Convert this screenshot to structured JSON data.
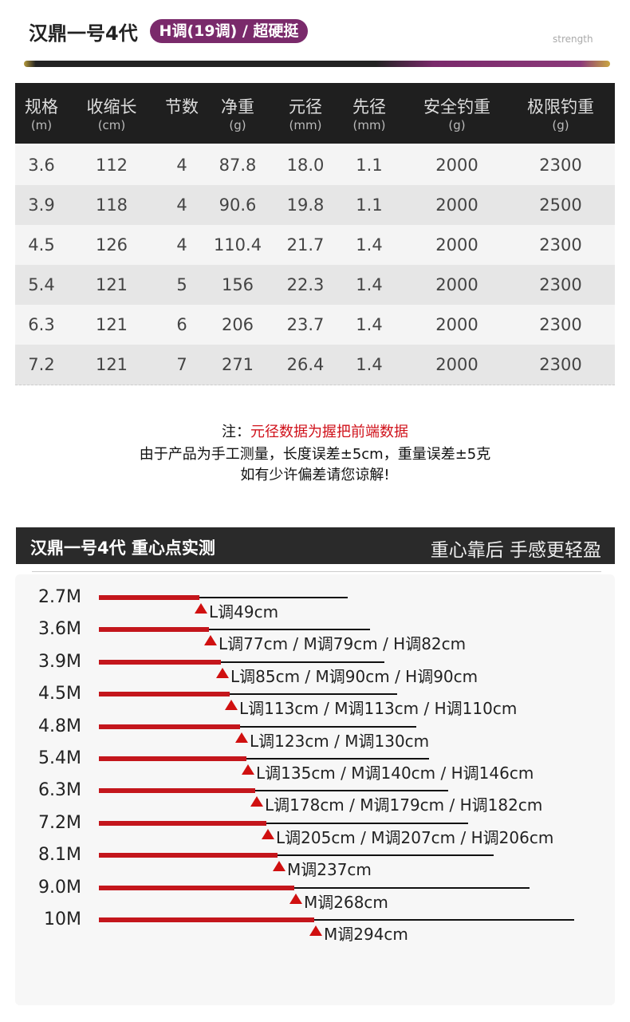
{
  "header": {
    "title": "汉鼎一号4代",
    "badge": "H调(19调) / 超硬挺",
    "rod_text": "strength"
  },
  "table": {
    "columns": [
      {
        "name": "规格",
        "unit": "(m)"
      },
      {
        "name": "收缩长",
        "unit": "(cm)"
      },
      {
        "name": "节数",
        "unit": ""
      },
      {
        "name": "净重",
        "unit": "(g)"
      },
      {
        "name": "元径",
        "unit": "(mm)"
      },
      {
        "name": "先径",
        "unit": "(mm)"
      },
      {
        "name": "安全钓重",
        "unit": "(g)"
      },
      {
        "name": "极限钓重",
        "unit": "(g)"
      }
    ],
    "rows": [
      [
        "3.6",
        "112",
        "4",
        "87.8",
        "18.0",
        "1.1",
        "2000",
        "2300"
      ],
      [
        "3.9",
        "118",
        "4",
        "90.6",
        "19.8",
        "1.1",
        "2000",
        "2500"
      ],
      [
        "4.5",
        "126",
        "4",
        "110.4",
        "21.7",
        "1.4",
        "2000",
        "2300"
      ],
      [
        "5.4",
        "121",
        "5",
        "156",
        "22.3",
        "1.4",
        "2000",
        "2300"
      ],
      [
        "6.3",
        "121",
        "6",
        "206",
        "23.7",
        "1.4",
        "2000",
        "2300"
      ],
      [
        "7.2",
        "121",
        "7",
        "271",
        "26.4",
        "1.4",
        "2000",
        "2300"
      ]
    ]
  },
  "note": {
    "label": "注：",
    "highlight": "元径数据为握把前端数据",
    "lines": [
      "由于产品为手工测量，长度误差±5cm，重量误差±5克",
      "如有少许偏差请您谅解!"
    ]
  },
  "balance": {
    "title": "汉鼎一号4代  重心点实测",
    "slogan": "重心靠后 手感更轻盈",
    "rows": [
      {
        "length": "2.7M",
        "points": "L调49cm"
      },
      {
        "length": "3.6M",
        "points": "L调77cm / M调79cm / H调82cm"
      },
      {
        "length": "3.9M",
        "points": "L调85cm / M调90cm / H调90cm"
      },
      {
        "length": "4.5M",
        "points": "L调113cm / M调113cm / H调110cm"
      },
      {
        "length": "4.8M",
        "points": "L调123cm / M调130cm"
      },
      {
        "length": "5.4M",
        "points": "L调135cm / M调140cm / H调146cm"
      },
      {
        "length": "6.3M",
        "points": "L调178cm / M调179cm / H调182cm"
      },
      {
        "length": "7.2M",
        "points": "L调205cm / M调207cm / H调206cm"
      },
      {
        "length": "8.1M",
        "points": "M调237cm"
      },
      {
        "length": "9.0M",
        "points": "M调268cm"
      },
      {
        "length": "10M",
        "points": "M调294cm"
      }
    ]
  }
}
